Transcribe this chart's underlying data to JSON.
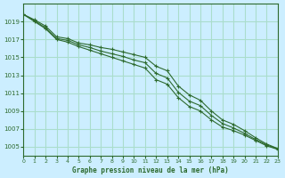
{
  "title": "Graphe pression niveau de la mer (hPa)",
  "bg_color": "#cceeff",
  "grid_color": "#aaddcc",
  "line_color": "#2d6a2d",
  "marker_color": "#2d6a2d",
  "x_min": 0,
  "x_max": 23,
  "y_min": 1004,
  "y_max": 1021,
  "yticks": [
    1005,
    1007,
    1009,
    1011,
    1013,
    1015,
    1017,
    1019
  ],
  "xticks": [
    0,
    1,
    2,
    3,
    4,
    5,
    6,
    7,
    8,
    9,
    10,
    11,
    12,
    13,
    14,
    15,
    16,
    17,
    18,
    19,
    20,
    21,
    22,
    23
  ],
  "series": [
    [
      1019.8,
      1019.2,
      1018.5,
      1017.3,
      1017.1,
      1016.6,
      1016.4,
      1016.1,
      1015.9,
      1015.6,
      1015.3,
      1015.0,
      1014.0,
      1013.5,
      1011.8,
      1010.8,
      1010.2,
      1009.0,
      1008.0,
      1007.5,
      1006.8,
      1006.0,
      1005.3,
      1004.8
    ],
    [
      1019.8,
      1019.0,
      1018.2,
      1017.0,
      1016.7,
      1016.2,
      1015.8,
      1015.4,
      1015.0,
      1014.6,
      1014.2,
      1013.8,
      1012.5,
      1012.0,
      1010.5,
      1009.5,
      1009.0,
      1008.0,
      1007.2,
      1006.8,
      1006.3,
      1005.7,
      1005.1,
      1004.7
    ],
    [
      1019.8,
      1019.1,
      1018.3,
      1017.1,
      1016.9,
      1016.4,
      1016.1,
      1015.7,
      1015.4,
      1015.1,
      1014.7,
      1014.4,
      1013.2,
      1012.7,
      1011.1,
      1010.1,
      1009.6,
      1008.5,
      1007.6,
      1007.1,
      1006.5,
      1005.8,
      1005.2,
      1004.75
    ]
  ]
}
